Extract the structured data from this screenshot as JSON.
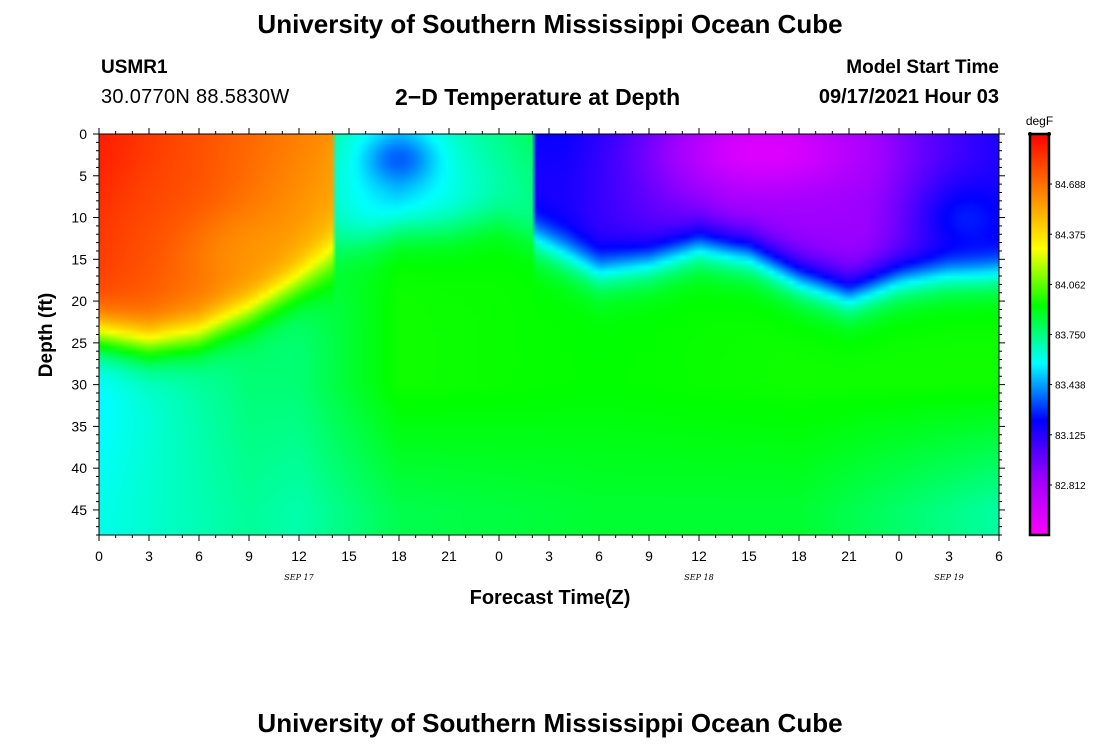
{
  "header": {
    "title": "University of Southern Mississippi Ocean Cube",
    "station_id": "USMR1",
    "station_coords": "30.0770N  88.5830W",
    "model_start_label": "Model Start Time",
    "model_start_value": "09/17/2021 Hour 03"
  },
  "footer": {
    "title": "University of Southern Mississippi Ocean Cube"
  },
  "chart_data": {
    "type": "heatmap",
    "title": "2−D Temperature at Depth",
    "xlabel": "Forecast Time(Z)",
    "ylabel": "Depth (ft)",
    "x_range_hours": [
      0,
      54
    ],
    "x_tick_labels": [
      "0",
      "3",
      "6",
      "9",
      "12",
      "15",
      "18",
      "21",
      "0",
      "3",
      "6",
      "9",
      "12",
      "15",
      "18",
      "21",
      "0",
      "3",
      "6"
    ],
    "date_labels": [
      {
        "label": "SEP 17",
        "hour": 12
      },
      {
        "label": "SEP 18",
        "hour": 36
      },
      {
        "label": "SEP 19",
        "hour": 51
      }
    ],
    "y_range": [
      0,
      48
    ],
    "y_ticks": [
      0,
      5,
      10,
      15,
      20,
      25,
      30,
      35,
      40,
      45
    ],
    "colorbar": {
      "unit": "degF",
      "range": [
        82.5,
        85.0
      ],
      "labels": [
        "84.688",
        "84.375",
        "84.062",
        "83.750",
        "83.438",
        "83.125",
        "82.812"
      ],
      "colors": [
        "#ff00ff",
        "#9900ff",
        "#0000ff",
        "#00ffff",
        "#00ff00",
        "#ffff00",
        "#ff8000",
        "#ff0000"
      ]
    },
    "thermocline_depth_ft": [
      {
        "hour": 0,
        "depth": 24
      },
      {
        "hour": 3,
        "depth": 25
      },
      {
        "hour": 6,
        "depth": 24
      },
      {
        "hour": 9,
        "depth": 21
      },
      {
        "hour": 12,
        "depth": 17
      },
      {
        "hour": 15,
        "depth": 13
      },
      {
        "hour": 18,
        "depth": 11
      },
      {
        "hour": 21,
        "depth": 11
      },
      {
        "hour": 24,
        "depth": 10
      },
      {
        "hour": 27,
        "depth": 13
      },
      {
        "hour": 30,
        "depth": 16
      },
      {
        "hour": 33,
        "depth": 15
      },
      {
        "hour": 36,
        "depth": 13
      },
      {
        "hour": 39,
        "depth": 14
      },
      {
        "hour": 42,
        "depth": 17
      },
      {
        "hour": 45,
        "depth": 19
      },
      {
        "hour": 48,
        "depth": 17
      },
      {
        "hour": 51,
        "depth": 16
      },
      {
        "hour": 54,
        "depth": 16
      }
    ],
    "warm_hotspots": [
      {
        "hour": 0,
        "depth": 3,
        "temp": 84.95,
        "hour_spread": 3,
        "depth_spread": 6
      },
      {
        "hour": 4,
        "depth": 8,
        "temp": 84.8,
        "hour_spread": 4,
        "depth_spread": 8
      },
      {
        "hour": 9,
        "depth": 14,
        "temp": 84.55,
        "hour_spread": 4,
        "depth_spread": 5
      }
    ],
    "cold_hotspots": [
      {
        "hour": 18,
        "depth": 3,
        "temp": 83.3,
        "hour_spread": 2,
        "depth_spread": 3
      },
      {
        "hour": 40,
        "depth": 2,
        "temp": 82.55,
        "hour_spread": 6,
        "depth_spread": 5
      },
      {
        "hour": 52,
        "depth": 10,
        "temp": 83.3,
        "hour_spread": 3,
        "depth_spread": 5
      }
    ],
    "deep_profile": [
      {
        "hour": 0,
        "temp_30ft": 83.55,
        "temp_45ft": 83.6
      },
      {
        "hour": 12,
        "temp_30ft": 83.7,
        "temp_45ft": 83.62
      },
      {
        "hour": 18,
        "temp_30ft": 83.95,
        "temp_45ft": 83.82
      },
      {
        "hour": 30,
        "temp_30ft": 83.93,
        "temp_45ft": 83.86
      },
      {
        "hour": 42,
        "temp_30ft": 83.95,
        "temp_45ft": 83.86
      },
      {
        "hour": 54,
        "temp_30ft": 83.95,
        "temp_45ft": 83.7
      }
    ]
  }
}
